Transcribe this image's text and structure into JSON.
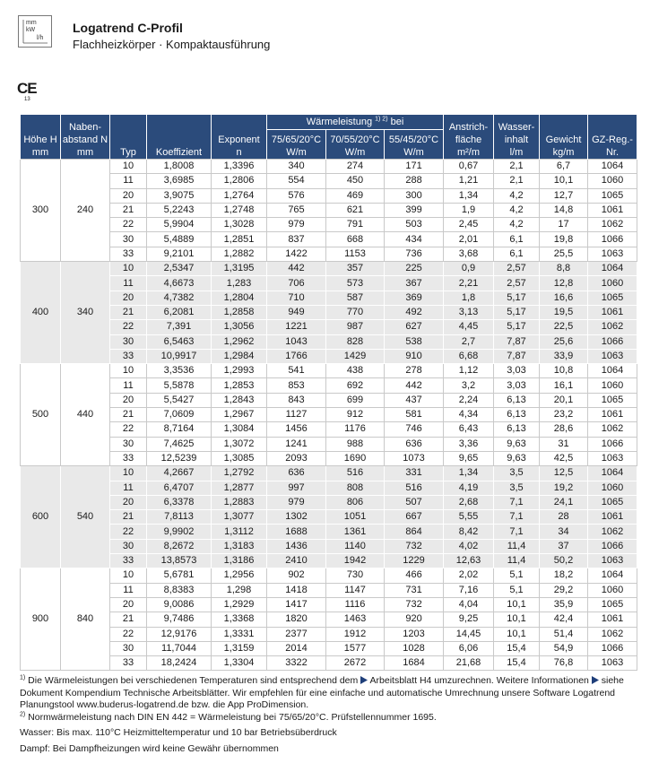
{
  "icon": {
    "labels": [
      "mm",
      "kW",
      "l/h"
    ]
  },
  "header": {
    "title": "Logatrend C-Profil",
    "subtitle": "Flachheizkörper · Kompaktausführung",
    "ce": "CE",
    "ce_number": "13"
  },
  "table": {
    "columns": {
      "hoehe": [
        "Höhe H",
        "mm"
      ],
      "naben": [
        "Naben-",
        "abstand N",
        "mm"
      ],
      "typ": [
        "Typ"
      ],
      "koeff": [
        "Koeffizient"
      ],
      "exponent": [
        "Exponent",
        "n"
      ],
      "waerme": {
        "title": "Wärmeleistung",
        "marker": "1) 2)",
        "after": "bei",
        "sub": [
          [
            "75/65/20°C",
            "W/m"
          ],
          [
            "70/55/20°C",
            "W/m"
          ],
          [
            "55/45/20°C",
            "W/m"
          ]
        ]
      },
      "flaeche": [
        "Anstrich-",
        "fläche",
        "m²/m"
      ],
      "inhalt": [
        "Wasser-",
        "inhalt",
        "l/m"
      ],
      "gewicht": [
        "Gewicht",
        "kg/m"
      ],
      "gz": [
        "GZ-Reg.-",
        "Nr."
      ]
    },
    "groups": [
      {
        "hoehe": "300",
        "naben": "240",
        "rows": [
          [
            "10",
            "1,8008",
            "1,3396",
            "340",
            "274",
            "171",
            "0,67",
            "2,1",
            "6,7",
            "1064"
          ],
          [
            "11",
            "3,6985",
            "1,2806",
            "554",
            "450",
            "288",
            "1,21",
            "2,1",
            "10,1",
            "1060"
          ],
          [
            "20",
            "3,9075",
            "1,2764",
            "576",
            "469",
            "300",
            "1,34",
            "4,2",
            "12,7",
            "1065"
          ],
          [
            "21",
            "5,2243",
            "1,2748",
            "765",
            "621",
            "399",
            "1,9",
            "4,2",
            "14,8",
            "1061"
          ],
          [
            "22",
            "5,9904",
            "1,3028",
            "979",
            "791",
            "503",
            "2,45",
            "4,2",
            "17",
            "1062"
          ],
          [
            "30",
            "5,4889",
            "1,2851",
            "837",
            "668",
            "434",
            "2,01",
            "6,1",
            "19,8",
            "1066"
          ],
          [
            "33",
            "9,2101",
            "1,2882",
            "1422",
            "1153",
            "736",
            "3,68",
            "6,1",
            "25,5",
            "1063"
          ]
        ]
      },
      {
        "hoehe": "400",
        "naben": "340",
        "rows": [
          [
            "10",
            "2,5347",
            "1,3195",
            "442",
            "357",
            "225",
            "0,9",
            "2,57",
            "8,8",
            "1064"
          ],
          [
            "11",
            "4,6673",
            "1,283",
            "706",
            "573",
            "367",
            "2,21",
            "2,57",
            "12,8",
            "1060"
          ],
          [
            "20",
            "4,7382",
            "1,2804",
            "710",
            "587",
            "369",
            "1,8",
            "5,17",
            "16,6",
            "1065"
          ],
          [
            "21",
            "6,2081",
            "1,2858",
            "949",
            "770",
            "492",
            "3,13",
            "5,17",
            "19,5",
            "1061"
          ],
          [
            "22",
            "7,391",
            "1,3056",
            "1221",
            "987",
            "627",
            "4,45",
            "5,17",
            "22,5",
            "1062"
          ],
          [
            "30",
            "6,5463",
            "1,2962",
            "1043",
            "828",
            "538",
            "2,7",
            "7,87",
            "25,6",
            "1066"
          ],
          [
            "33",
            "10,9917",
            "1,2984",
            "1766",
            "1429",
            "910",
            "6,68",
            "7,87",
            "33,9",
            "1063"
          ]
        ]
      },
      {
        "hoehe": "500",
        "naben": "440",
        "rows": [
          [
            "10",
            "3,3536",
            "1,2993",
            "541",
            "438",
            "278",
            "1,12",
            "3,03",
            "10,8",
            "1064"
          ],
          [
            "11",
            "5,5878",
            "1,2853",
            "853",
            "692",
            "442",
            "3,2",
            "3,03",
            "16,1",
            "1060"
          ],
          [
            "20",
            "5,5427",
            "1,2843",
            "843",
            "699",
            "437",
            "2,24",
            "6,13",
            "20,1",
            "1065"
          ],
          [
            "21",
            "7,0609",
            "1,2967",
            "1127",
            "912",
            "581",
            "4,34",
            "6,13",
            "23,2",
            "1061"
          ],
          [
            "22",
            "8,7164",
            "1,3084",
            "1456",
            "1176",
            "746",
            "6,43",
            "6,13",
            "28,6",
            "1062"
          ],
          [
            "30",
            "7,4625",
            "1,3072",
            "1241",
            "988",
            "636",
            "3,36",
            "9,63",
            "31",
            "1066"
          ],
          [
            "33",
            "12,5239",
            "1,3085",
            "2093",
            "1690",
            "1073",
            "9,65",
            "9,63",
            "42,5",
            "1063"
          ]
        ]
      },
      {
        "hoehe": "600",
        "naben": "540",
        "rows": [
          [
            "10",
            "4,2667",
            "1,2792",
            "636",
            "516",
            "331",
            "1,34",
            "3,5",
            "12,5",
            "1064"
          ],
          [
            "11",
            "6,4707",
            "1,2877",
            "997",
            "808",
            "516",
            "4,19",
            "3,5",
            "19,2",
            "1060"
          ],
          [
            "20",
            "6,3378",
            "1,2883",
            "979",
            "806",
            "507",
            "2,68",
            "7,1",
            "24,1",
            "1065"
          ],
          [
            "21",
            "7,8113",
            "1,3077",
            "1302",
            "1051",
            "667",
            "5,55",
            "7,1",
            "28",
            "1061"
          ],
          [
            "22",
            "9,9902",
            "1,3112",
            "1688",
            "1361",
            "864",
            "8,42",
            "7,1",
            "34",
            "1062"
          ],
          [
            "30",
            "8,2672",
            "1,3183",
            "1436",
            "1140",
            "732",
            "4,02",
            "11,4",
            "37",
            "1066"
          ],
          [
            "33",
            "13,8573",
            "1,3186",
            "2410",
            "1942",
            "1229",
            "12,63",
            "11,4",
            "50,2",
            "1063"
          ]
        ]
      },
      {
        "hoehe": "900",
        "naben": "840",
        "rows": [
          [
            "10",
            "5,6781",
            "1,2956",
            "902",
            "730",
            "466",
            "2,02",
            "5,1",
            "18,2",
            "1064"
          ],
          [
            "11",
            "8,8383",
            "1,298",
            "1418",
            "1147",
            "731",
            "7,16",
            "5,1",
            "29,2",
            "1060"
          ],
          [
            "20",
            "9,0086",
            "1,2929",
            "1417",
            "1116",
            "732",
            "4,04",
            "10,1",
            "35,9",
            "1065"
          ],
          [
            "21",
            "9,7486",
            "1,3368",
            "1820",
            "1463",
            "920",
            "9,25",
            "10,1",
            "42,4",
            "1061"
          ],
          [
            "22",
            "12,9176",
            "1,3331",
            "2377",
            "1912",
            "1203",
            "14,45",
            "10,1",
            "51,4",
            "1062"
          ],
          [
            "30",
            "11,7044",
            "1,3159",
            "2014",
            "1577",
            "1028",
            "6,06",
            "15,4",
            "54,9",
            "1066"
          ],
          [
            "33",
            "18,2424",
            "1,3304",
            "3322",
            "2672",
            "1684",
            "21,68",
            "15,4",
            "76,8",
            "1063"
          ]
        ]
      }
    ]
  },
  "footnotes": [
    {
      "marker": "1)",
      "parts": [
        "Die Wärmeleistungen bei verschiedenen Temperaturen sind entsprechend dem",
        "Arbeitsblatt H4 umzurechnen. Weitere Informationen",
        "siehe Dokument Kompendium Technische Arbeitsblätter. Wir empfehlen für eine einfache und automatische Umrechnung unsere Software Logatrend Planungstool www.buderus-logatrend.de bzw. die App ProDimension."
      ]
    },
    {
      "marker": "2)",
      "parts": [
        "Normwärmeleistung nach DIN EN 442 = Wärmeleistung bei 75/65/20°C. Prüfstellennummer 1695."
      ]
    }
  ],
  "notes": [
    "Wasser: Bis max. 110°C Heizmitteltemperatur und 10 bar Betriebsüberdruck",
    "Dampf: Bei Dampfheizungen wird keine Gewähr übernommen"
  ]
}
